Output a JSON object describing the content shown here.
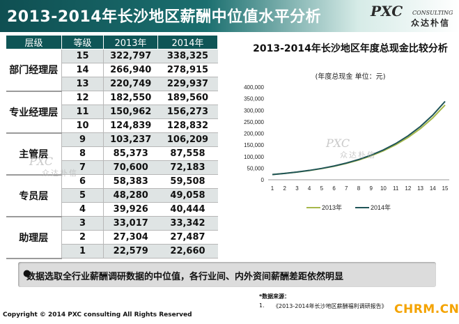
{
  "header": {
    "title": "2013-2014年长沙地区薪酬中位值水平分析"
  },
  "logo": {
    "main": "PXC",
    "sub": "CONSULTING",
    "cn": "众达朴信"
  },
  "watermark": {
    "main": "PXC",
    "sub": "CONSULTING",
    "cn": "众达朴信"
  },
  "table": {
    "headers": [
      "层级",
      "等级",
      "2013年",
      "2014年"
    ],
    "groups": [
      {
        "category": "部门经理层",
        "rows": [
          [
            "15",
            "322,797",
            "338,325"
          ],
          [
            "14",
            "266,940",
            "278,915"
          ],
          [
            "13",
            "220,749",
            "229,937"
          ]
        ]
      },
      {
        "category": "专业经理层",
        "rows": [
          [
            "12",
            "182,550",
            "189,560"
          ],
          [
            "11",
            "150,962",
            "156,273"
          ],
          [
            "10",
            "124,839",
            "128,832"
          ]
        ]
      },
      {
        "category": "主管层",
        "rows": [
          [
            "9",
            "103,237",
            "106,209"
          ],
          [
            "8",
            "85,373",
            "87,558"
          ],
          [
            "7",
            "70,600",
            "72,183"
          ]
        ]
      },
      {
        "category": "专员层",
        "rows": [
          [
            "6",
            "58,383",
            "59,508"
          ],
          [
            "5",
            "48,280",
            "49,058"
          ],
          [
            "4",
            "39,926",
            "40,444"
          ]
        ]
      },
      {
        "category": "助理层",
        "rows": [
          [
            "3",
            "33,017",
            "33,342"
          ],
          [
            "2",
            "27,304",
            "27,487"
          ],
          [
            "1",
            "22,579",
            "22,660"
          ]
        ]
      }
    ]
  },
  "chart_data": {
    "type": "line",
    "title": "2013-2014年长沙地区年度总现金比较分析",
    "subtitle": "(年度总现金 单位：元)",
    "x": [
      1,
      2,
      3,
      4,
      5,
      6,
      7,
      8,
      9,
      10,
      11,
      12,
      13,
      14,
      15
    ],
    "ylim": [
      0,
      400000
    ],
    "yticks": [
      0,
      50000,
      100000,
      150000,
      200000,
      250000,
      300000,
      350000,
      400000
    ],
    "ytick_labels": [
      "0",
      "50,000",
      "100,000",
      "150,000",
      "200,000",
      "250,000",
      "300,000",
      "350,000",
      "400,000"
    ],
    "series": [
      {
        "name": "2013年",
        "color": "#a6b84a",
        "values": [
          22579,
          27304,
          33017,
          39926,
          48280,
          58383,
          70600,
          85373,
          103237,
          124839,
          150962,
          182550,
          220749,
          266940,
          322797
        ]
      },
      {
        "name": "2014年",
        "color": "#1f5457",
        "values": [
          22660,
          27487,
          33342,
          40444,
          49058,
          59508,
          72183,
          87558,
          106209,
          128832,
          156273,
          189560,
          229937,
          278915,
          338325
        ]
      }
    ],
    "legend_position": "bottom",
    "grid": false
  },
  "note": {
    "text": "数据选取全行业薪酬调研数据的中位值，各行业间、内外资间薪酬差距依然明显"
  },
  "footer": {
    "copyright": "Copyright © 2014  PXC consulting All Rights Reserved",
    "source_label": "*数据来源：",
    "source_num": "1.",
    "source_text": "《2013-2014年长沙地区薪酬福利调研报告》",
    "site": "CHRM.CN"
  }
}
